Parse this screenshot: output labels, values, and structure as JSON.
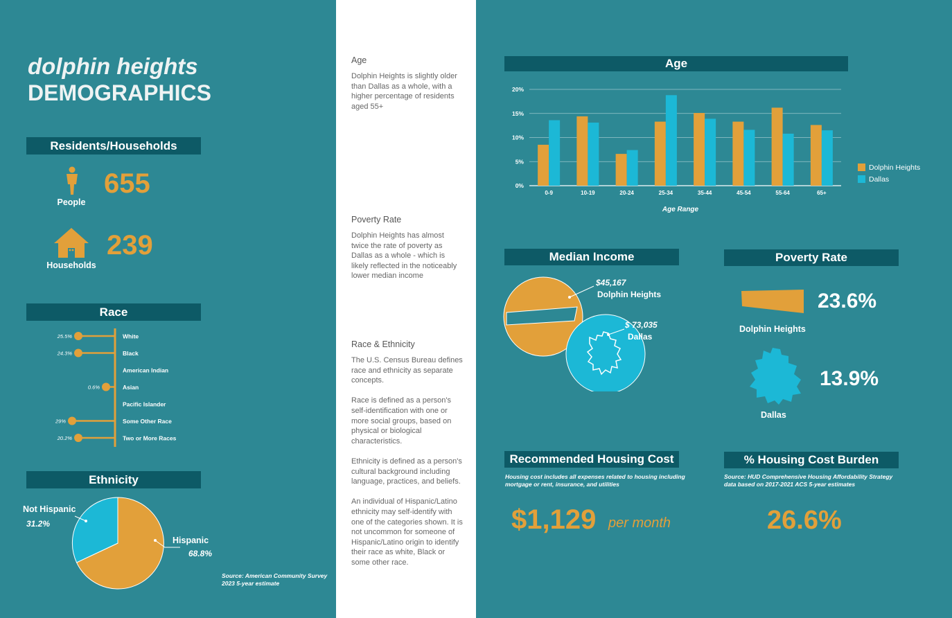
{
  "title": {
    "line1": "dolphin heights",
    "line2": "DEMOGRAPHICS"
  },
  "residents": {
    "header": "Residents/Households",
    "people_value": "655",
    "people_label": "People",
    "households_value": "239",
    "households_label": "Households"
  },
  "race": {
    "header": "Race",
    "items": [
      {
        "label": "White",
        "percent": "25.5%"
      },
      {
        "label": "Black",
        "percent": "24.3%"
      },
      {
        "label": "American Indian",
        "percent": ""
      },
      {
        "label": "Asian",
        "percent": "0.6%"
      },
      {
        "label": "Pacific Islander",
        "percent": ""
      },
      {
        "label": "Some Other Race",
        "percent": "29%"
      },
      {
        "label": "Two or More Races",
        "percent": "20.2%"
      }
    ]
  },
  "ethnicity": {
    "header": "Ethnicity",
    "hispanic_label": "Hispanic",
    "hispanic_value": "68.8%",
    "not_hispanic_label": "Not Hispanic",
    "not_hispanic_value": "31.2%",
    "source": "Source: American Community Survey 2023 5-year estimate"
  },
  "sidebar": {
    "age_title": "Age",
    "age_text": "Dolphin Heights is slightly older than Dallas as a whole, with a higher percentage of residents aged 55+",
    "poverty_title": "Poverty Rate",
    "poverty_text": "Dolphin Heights has almost twice the rate of poverty as Dallas as a whole - which is likely reflected in the noticeably lower median income",
    "race_title": "Race & Ethnicity",
    "race_p1": "The U.S. Census Bureau defines race and ethnicity as separate concepts.",
    "race_p2": "Race is defined as a person's self-identification with one or more social groups, based on physical or biological characteristics.",
    "race_p3": "Ethnicity is defined as a person's cultural background including language, practices, and beliefs.",
    "race_p4": "An individual of Hispanic/Latino ethnicity may self-identify with one of the categories shown. It is not uncommon for someone of Hispanic/Latino origin to identify their race as white, Black or some other race."
  },
  "chart_data": {
    "type": "bar",
    "title": "Age",
    "xlabel": "Age Range",
    "ylabel": "",
    "ylim": [
      0,
      20
    ],
    "yticks": [
      "0%",
      "5%",
      "10%",
      "15%",
      "20%"
    ],
    "categories": [
      "0-9",
      "10-19",
      "20-24",
      "25-34",
      "35-44",
      "45-54",
      "55-64",
      "65+"
    ],
    "series": [
      {
        "name": "Dolphin Heights",
        "color": "#e2a03a",
        "values": [
          8.5,
          14.4,
          6.6,
          13.3,
          15.1,
          13.3,
          16.2,
          12.6
        ]
      },
      {
        "name": "Dallas",
        "color": "#1cb8d6",
        "values": [
          13.6,
          13.1,
          7.4,
          18.8,
          13.9,
          11.6,
          10.8,
          11.5
        ]
      }
    ],
    "legend": "right"
  },
  "median_income": {
    "header": "Median Income",
    "dh_value": "$45,167",
    "dh_label": "Dolphin Heights",
    "dallas_value": "$ 73,035",
    "dallas_label": "Dallas"
  },
  "poverty": {
    "header": "Poverty Rate",
    "dh_value": "23.6%",
    "dh_label": "Dolphin Heights",
    "dallas_value": "13.9%",
    "dallas_label": "Dallas"
  },
  "housing_cost": {
    "header": "Recommended Housing Cost",
    "note": "Housing cost includes all expenses related to housing including mortgage or rent, insurance, and utilities",
    "value": "$1,129",
    "unit": "per month"
  },
  "housing_burden": {
    "header": "% Housing Cost Burden",
    "note": "Source: HUD Comprehensive Housing Affordability Strategy data based on 2017-2021 ACS 5-year estimates",
    "value": "26.6%"
  },
  "colors": {
    "background": "#2d8894",
    "header": "#0d5a66",
    "orange": "#e2a03a",
    "blue": "#1cb8d6"
  }
}
